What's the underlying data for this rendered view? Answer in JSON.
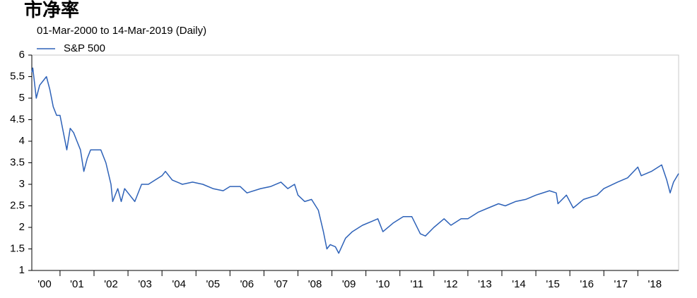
{
  "chart_data": {
    "type": "line",
    "title": "市净率",
    "subtitle": "01-Mar-2000 to 14-Mar-2019 (Daily)",
    "x": [
      2000.17,
      2000.2,
      2000.3,
      2000.4,
      2000.5,
      2000.6,
      2000.7,
      2000.8,
      2000.9,
      2001.0,
      2001.1,
      2001.2,
      2001.3,
      2001.4,
      2001.5,
      2001.6,
      2001.7,
      2001.8,
      2001.9,
      2002.0,
      2002.2,
      2002.35,
      2002.5,
      2002.55,
      2002.7,
      2002.8,
      2002.9,
      2003.0,
      2003.2,
      2003.4,
      2003.6,
      2003.8,
      2004.0,
      2004.1,
      2004.3,
      2004.6,
      2004.9,
      2005.2,
      2005.5,
      2005.8,
      2006.0,
      2006.3,
      2006.5,
      2006.9,
      2007.2,
      2007.5,
      2007.7,
      2007.9,
      2008.0,
      2008.2,
      2008.4,
      2008.6,
      2008.75,
      2008.85,
      2008.95,
      2009.1,
      2009.2,
      2009.4,
      2009.6,
      2009.9,
      2010.2,
      2010.35,
      2010.5,
      2010.8,
      2011.1,
      2011.35,
      2011.6,
      2011.75,
      2012.0,
      2012.3,
      2012.5,
      2012.8,
      2013.0,
      2013.3,
      2013.6,
      2013.9,
      2014.1,
      2014.4,
      2014.7,
      2015.0,
      2015.4,
      2015.6,
      2015.65,
      2015.9,
      2016.1,
      2016.4,
      2016.8,
      2017.0,
      2017.4,
      2017.7,
      2018.0,
      2018.1,
      2018.4,
      2018.7,
      2018.85,
      2018.95,
      2019.05,
      2019.2
    ],
    "series": [
      {
        "name": "S&P 500",
        "color": "#2e62b8",
        "values": [
          5.6,
          5.7,
          5.0,
          5.3,
          5.4,
          5.5,
          5.2,
          4.8,
          4.6,
          4.6,
          4.2,
          3.8,
          4.3,
          4.2,
          4.0,
          3.8,
          3.3,
          3.6,
          3.8,
          3.8,
          3.8,
          3.5,
          3.0,
          2.6,
          2.9,
          2.6,
          2.9,
          2.8,
          2.6,
          3.0,
          3.0,
          3.1,
          3.2,
          3.3,
          3.1,
          3.0,
          3.05,
          3.0,
          2.9,
          2.85,
          2.95,
          2.95,
          2.8,
          2.9,
          2.95,
          3.05,
          2.9,
          3.0,
          2.75,
          2.6,
          2.65,
          2.4,
          1.9,
          1.5,
          1.6,
          1.55,
          1.4,
          1.75,
          1.9,
          2.05,
          2.15,
          2.2,
          1.9,
          2.1,
          2.25,
          2.25,
          1.85,
          1.8,
          2.0,
          2.2,
          2.05,
          2.2,
          2.2,
          2.35,
          2.45,
          2.55,
          2.5,
          2.6,
          2.65,
          2.75,
          2.85,
          2.8,
          2.55,
          2.75,
          2.45,
          2.65,
          2.75,
          2.9,
          3.05,
          3.15,
          3.4,
          3.2,
          3.3,
          3.45,
          3.1,
          2.8,
          3.05,
          3.25
        ]
      }
    ],
    "xlim": [
      2000.17,
      2019.2
    ],
    "xticks": [
      {
        "value": 2000,
        "label": "'00"
      },
      {
        "value": 2001,
        "label": "'01"
      },
      {
        "value": 2002,
        "label": "'02"
      },
      {
        "value": 2003,
        "label": "'03"
      },
      {
        "value": 2004,
        "label": "'04"
      },
      {
        "value": 2005,
        "label": "'05"
      },
      {
        "value": 2006,
        "label": "'06"
      },
      {
        "value": 2007,
        "label": "'07"
      },
      {
        "value": 2008,
        "label": "'08"
      },
      {
        "value": 2009,
        "label": "'09"
      },
      {
        "value": 2010,
        "label": "'10"
      },
      {
        "value": 2011,
        "label": "'11"
      },
      {
        "value": 2012,
        "label": "'12"
      },
      {
        "value": 2013,
        "label": "'13"
      },
      {
        "value": 2014,
        "label": "'14"
      },
      {
        "value": 2015,
        "label": "'15"
      },
      {
        "value": 2016,
        "label": "'16"
      },
      {
        "value": 2017,
        "label": "'17"
      },
      {
        "value": 2018,
        "label": "'18"
      }
    ],
    "ylim": [
      1,
      6
    ],
    "yticks": [
      1,
      1.5,
      2,
      2.5,
      3,
      3.5,
      4,
      4.5,
      5,
      5.5,
      6
    ],
    "grid": false,
    "legend": "top-left"
  }
}
